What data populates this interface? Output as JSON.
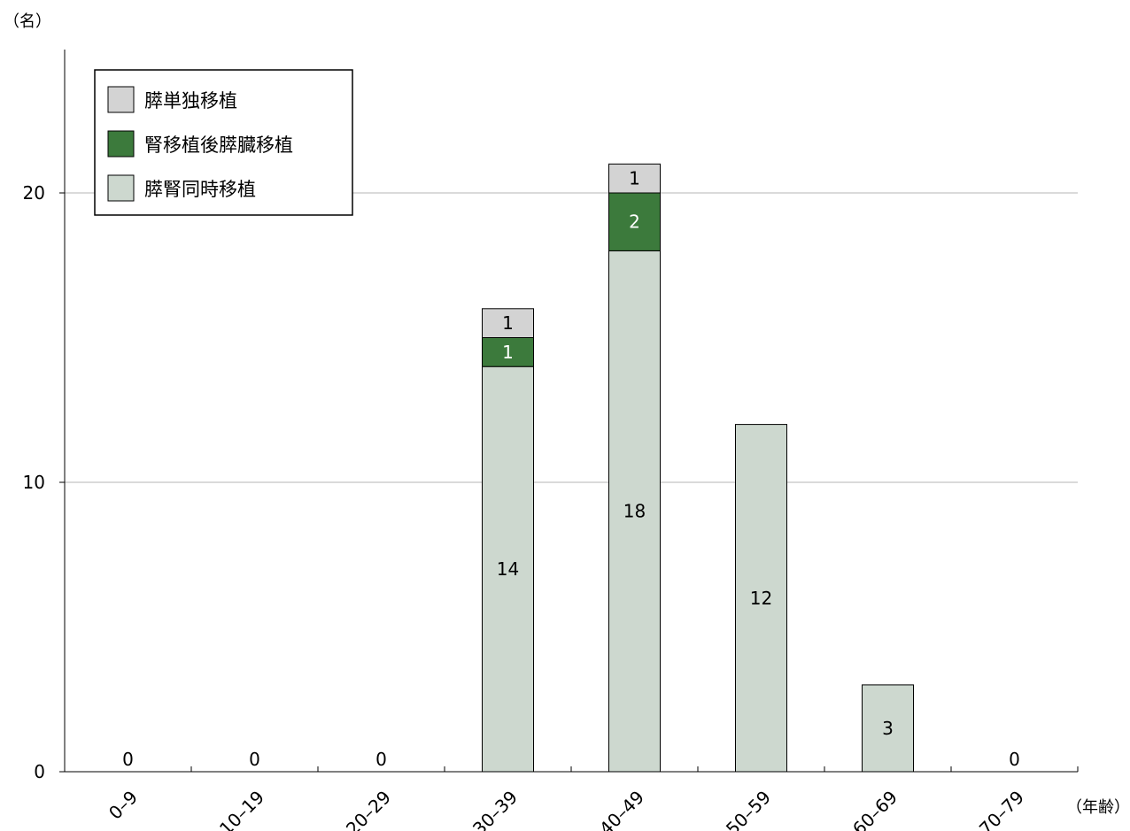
{
  "chart_data": {
    "type": "bar",
    "stacked": true,
    "y_unit_label": "（名）",
    "x_unit_label": "（年齢）",
    "categories": [
      "0–9",
      "10–19",
      "20–29",
      "30–39",
      "40–49",
      "50–59",
      "60–69",
      "70–79"
    ],
    "series": [
      {
        "name": "膵腎同時移植",
        "color": "#cdd8cf",
        "values": [
          0,
          0,
          0,
          14,
          18,
          12,
          3,
          0
        ]
      },
      {
        "name": "腎移植後膵臓移植",
        "color": "#3c7a3c",
        "values": [
          0,
          0,
          0,
          1,
          2,
          0,
          0,
          0
        ]
      },
      {
        "name": "膵単独移植",
        "color": "#d3d3d3",
        "values": [
          0,
          0,
          0,
          1,
          1,
          0,
          0,
          0
        ]
      }
    ],
    "zero_labels": [
      "0",
      "0",
      "0",
      "",
      "",
      "",
      "",
      "0"
    ],
    "yticks": [
      0,
      10,
      20
    ],
    "ylim": [
      0,
      20
    ],
    "grid": true,
    "legend_position": "top-left",
    "legend_order": [
      "膵単独移植",
      "腎移植後膵臓移植",
      "膵腎同時移植"
    ]
  }
}
